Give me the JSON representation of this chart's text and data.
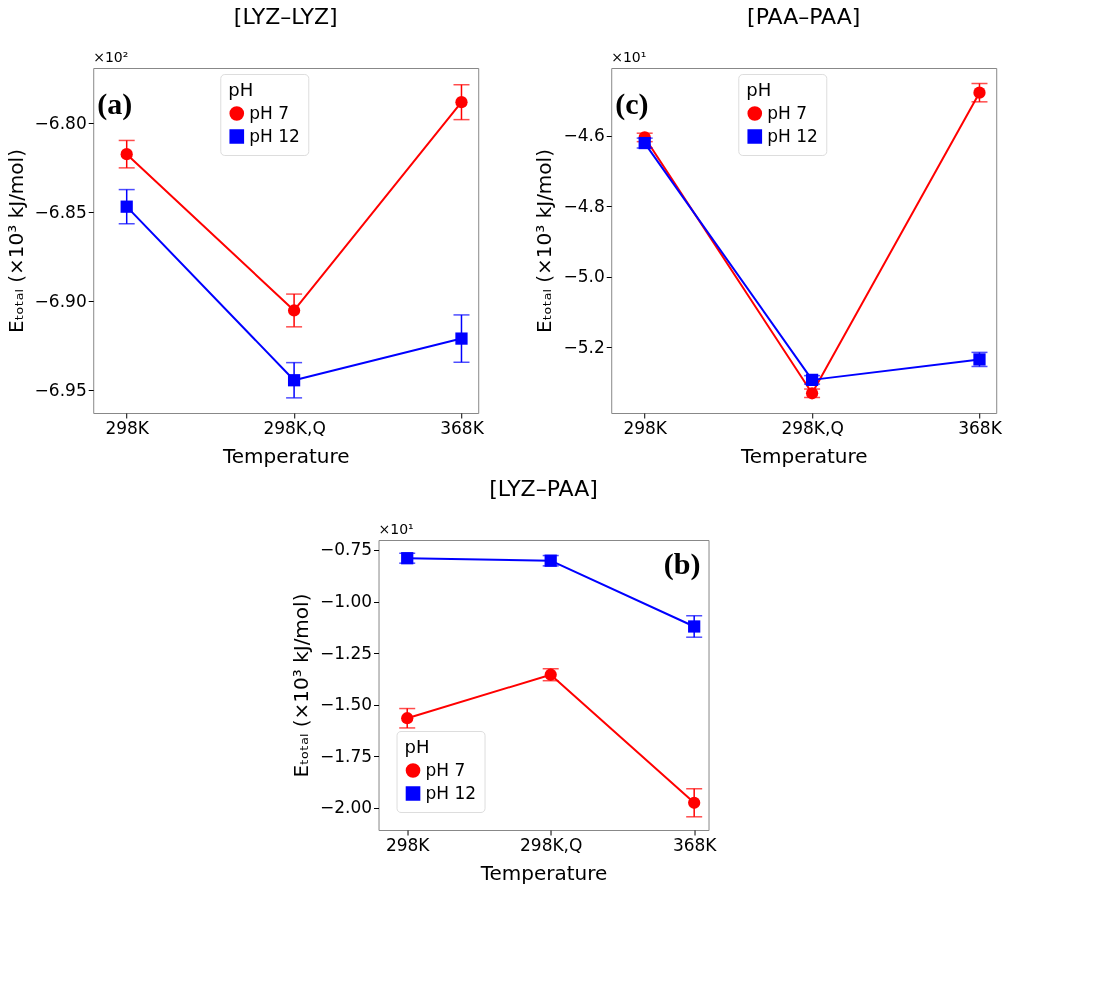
{
  "chart_data": [
    {
      "type": "line",
      "title": "[LYZ–LYZ]",
      "xlabel": "Temperature",
      "ylabel": "Eₜₒₜₐₗ (×10³ kJ/mol)",
      "legend_title": "pH",
      "legend": "top",
      "grid": false,
      "categories": [
        "298K",
        "298K,Q",
        "368K"
      ],
      "ylim": [
        -6.9628,
        -6.769
      ],
      "yticks": [
        {
          "value": -6.8,
          "label": "−6.80"
        },
        {
          "value": -6.85,
          "label": "−6.85"
        },
        {
          "value": -6.9,
          "label": "−6.90"
        },
        {
          "value": -6.95,
          "label": "−6.95"
        }
      ],
      "annotations": [
        "(a)",
        "×10²"
      ],
      "series": [
        {
          "name": "pH 7",
          "color": "#ff0000",
          "marker": "circle",
          "values": [
            -6.8174,
            -6.9052,
            -6.7882
          ],
          "errors": [
            0.0077,
            0.0092,
            0.0098
          ]
        },
        {
          "name": "pH 12",
          "color": "#0000ff",
          "marker": "square",
          "values": [
            -6.8469,
            -6.9444,
            -6.921
          ],
          "errors": [
            0.0096,
            0.0099,
            0.0133
          ]
        }
      ]
    },
    {
      "type": "line",
      "title": "[PAA–PAA]",
      "xlabel": "Temperature",
      "ylabel": "Eₜₒₜₐₗ (×10³ kJ/mol)",
      "legend_title": "pH",
      "legend": "top",
      "grid": false,
      "categories": [
        "298K",
        "298K,Q",
        "368K"
      ],
      "ylim": [
        -5.387,
        -4.408
      ],
      "yticks": [
        {
          "value": -4.6,
          "label": "−4.6"
        },
        {
          "value": -4.8,
          "label": "−4.8"
        },
        {
          "value": -5.0,
          "label": "−5.0"
        },
        {
          "value": -5.2,
          "label": "−5.2"
        }
      ],
      "annotations": [
        "(c)",
        "×10¹"
      ],
      "series": [
        {
          "name": "pH 7",
          "color": "#ff0000",
          "marker": "circle",
          "values": [
            -4.605,
            -5.331,
            -4.478
          ],
          "errors": [
            0.012,
            0.012,
            0.026
          ]
        },
        {
          "name": "pH 12",
          "color": "#0000ff",
          "marker": "square",
          "values": [
            -4.621,
            -5.293,
            -5.235
          ],
          "errors": [
            0.014,
            0.012,
            0.02
          ]
        }
      ]
    },
    {
      "type": "line",
      "title": "[LYZ–PAA]",
      "xlabel": "Temperature",
      "ylabel": "Eₜₒₜₐₗ (×10³ kJ/mol)",
      "legend_title": "pH",
      "legend": "bottom left",
      "grid": false,
      "categories": [
        "298K",
        "298K,Q",
        "368K"
      ],
      "ylim": [
        -2.108,
        -0.7016
      ],
      "yticks": [
        {
          "value": -0.75,
          "label": "−0.75"
        },
        {
          "value": -1.0,
          "label": "−1.00"
        },
        {
          "value": -1.25,
          "label": "−1.25"
        },
        {
          "value": -1.5,
          "label": "−1.50"
        },
        {
          "value": -1.75,
          "label": "−1.75"
        },
        {
          "value": -2.0,
          "label": "−2.00"
        }
      ],
      "annotations": [
        "(b)",
        "×10¹"
      ],
      "series": [
        {
          "name": "pH 7",
          "color": "#ff0000",
          "marker": "circle",
          "values": [
            -1.566,
            -1.355,
            -1.976
          ],
          "errors": [
            0.047,
            0.029,
            0.068
          ]
        },
        {
          "name": "pH 12",
          "color": "#0000ff",
          "marker": "square",
          "values": [
            -0.79,
            -0.802,
            -1.121
          ],
          "errors": [
            0.024,
            0.025,
            0.052
          ]
        }
      ]
    }
  ]
}
